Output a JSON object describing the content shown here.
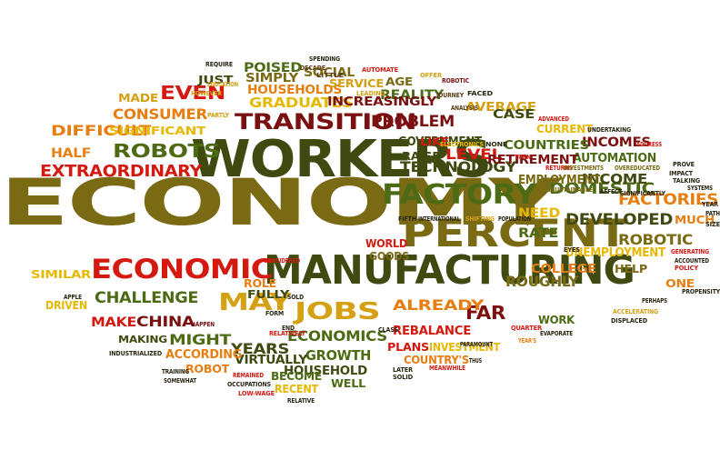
{
  "palette": {
    "olive": "#7a6a14",
    "dark-olive": "#3f4a10",
    "green": "#4d6b14",
    "lime": "#8fa01a",
    "gold": "#d4a014",
    "amber": "#e6b800",
    "orange": "#e67e12",
    "red": "#d41a10",
    "maroon": "#7a1010",
    "brown": "#5a3a10",
    "dark": "#2a2510"
  },
  "words": [
    {
      "text": "ECONOMY",
      "color": "olive"
    },
    {
      "text": "MANUFACTURING",
      "color": "dark-olive"
    },
    {
      "text": "WORKERS",
      "color": "dark-olive"
    },
    {
      "text": "PERCENT",
      "color": "olive"
    },
    {
      "text": "ECONOMIC",
      "color": "red"
    },
    {
      "text": "FACTORY",
      "color": "green"
    },
    {
      "text": "TRANSITION",
      "color": "maroon"
    },
    {
      "text": "JOBS",
      "color": "gold"
    },
    {
      "text": "MAY",
      "color": "gold"
    },
    {
      "text": "ROBOTS",
      "color": "green"
    },
    {
      "text": "EXTRAORDINARY",
      "color": "red"
    },
    {
      "text": "DIFFICULT",
      "color": "orange"
    },
    {
      "text": "EVEN",
      "color": "red"
    },
    {
      "text": "CONSUMER",
      "color": "orange"
    },
    {
      "text": "GRADUATES",
      "color": "amber"
    },
    {
      "text": "DOMESTIC",
      "color": "green"
    },
    {
      "text": "DEVELOPED",
      "color": "dark-olive"
    },
    {
      "text": "FACTORIES",
      "color": "orange"
    },
    {
      "text": "TECHNOLOGY",
      "color": "dark-olive"
    },
    {
      "text": "PROBLEM",
      "color": "maroon"
    },
    {
      "text": "CHALLENGE",
      "color": "green"
    },
    {
      "text": "ECONOMICS",
      "color": "green"
    },
    {
      "text": "ROUGHLY",
      "color": "olive"
    },
    {
      "text": "FAR",
      "color": "maroon"
    },
    {
      "text": "ALREADY",
      "color": "orange"
    },
    {
      "text": "INCOME",
      "color": "dark-olive"
    },
    {
      "text": "ROBOTIC",
      "color": "olive"
    },
    {
      "text": "CHINA",
      "color": "maroon"
    },
    {
      "text": "MAKE",
      "color": "red"
    },
    {
      "text": "YEARS",
      "color": "dark-olive"
    },
    {
      "text": "GROWTH",
      "color": "green"
    },
    {
      "text": "MIGHT",
      "color": "green"
    },
    {
      "text": "HALF",
      "color": "orange"
    },
    {
      "text": "LEVEL",
      "color": "red"
    },
    {
      "text": "NEED",
      "color": "amber"
    },
    {
      "text": "RATE",
      "color": "green"
    },
    {
      "text": "INCOMES",
      "color": "maroon"
    },
    {
      "text": "AUTOMATION",
      "color": "green"
    },
    {
      "text": "EMPLOYMENT",
      "color": "olive"
    },
    {
      "text": "RETIREMENT",
      "color": "maroon"
    },
    {
      "text": "COUNTRIES",
      "color": "green"
    },
    {
      "text": "GOVERNMENT",
      "color": "dark-olive"
    },
    {
      "text": "AVERAGE",
      "color": "gold"
    },
    {
      "text": "CASE",
      "color": "dark-olive"
    },
    {
      "text": "REALITY",
      "color": "green"
    },
    {
      "text": "INCREASINGLY",
      "color": "maroon"
    },
    {
      "text": "SIGNIFICANT",
      "color": "amber"
    },
    {
      "text": "HOUSEHOLDS",
      "color": "orange"
    },
    {
      "text": "POISED",
      "color": "green"
    },
    {
      "text": "SIMPLY",
      "color": "olive"
    },
    {
      "text": "SOCIAL",
      "color": "olive"
    },
    {
      "text": "SERVICE",
      "color": "gold"
    },
    {
      "text": "AGE",
      "color": "olive"
    },
    {
      "text": "MADE",
      "color": "gold"
    },
    {
      "text": "JUST",
      "color": "dark-olive"
    },
    {
      "text": "RAISE",
      "color": "dark-olive"
    },
    {
      "text": "LIKE",
      "color": "red"
    },
    {
      "text": "CURRENT",
      "color": "amber"
    },
    {
      "text": "UNEMPLOYMENT",
      "color": "amber"
    },
    {
      "text": "COLLEGE",
      "color": "orange"
    },
    {
      "text": "HELP",
      "color": "olive"
    },
    {
      "text": "MUCH",
      "color": "orange"
    },
    {
      "text": "ONE",
      "color": "orange"
    },
    {
      "text": "HOUSEHOLD",
      "color": "dark-olive"
    },
    {
      "text": "WELL",
      "color": "green"
    },
    {
      "text": "BECOME",
      "color": "green"
    },
    {
      "text": "RECENT",
      "color": "amber"
    },
    {
      "text": "VIRTUALLY",
      "color": "dark-olive"
    },
    {
      "text": "ACCORDING",
      "color": "orange"
    },
    {
      "text": "ROBOT",
      "color": "orange"
    },
    {
      "text": "REBALANCE",
      "color": "red"
    },
    {
      "text": "PLANS",
      "color": "red"
    },
    {
      "text": "INVESTMENT",
      "color": "amber"
    },
    {
      "text": "COUNTRY'S",
      "color": "orange"
    },
    {
      "text": "WORK",
      "color": "green"
    },
    {
      "text": "FULLY",
      "color": "dark-olive"
    },
    {
      "text": "ROLE",
      "color": "orange"
    },
    {
      "text": "WORLD",
      "color": "red"
    },
    {
      "text": "GOODS",
      "color": "olive"
    },
    {
      "text": "SIMILAR",
      "color": "amber"
    },
    {
      "text": "DRIVEN",
      "color": "amber"
    },
    {
      "text": "MAKING",
      "color": "dark-olive"
    },
    {
      "text": "SPENDING",
      "color": "dark"
    },
    {
      "text": "DECADE",
      "color": "brown"
    },
    {
      "text": "LITTLE",
      "color": "brown"
    },
    {
      "text": "AUTOMATE",
      "color": "red"
    },
    {
      "text": "ROBOTIC",
      "color": "maroon"
    },
    {
      "text": "OFFER",
      "color": "gold"
    },
    {
      "text": "FACED",
      "color": "dark"
    },
    {
      "text": "JOURNEY",
      "color": "brown"
    },
    {
      "text": "ANALYSIS",
      "color": "brown"
    },
    {
      "text": "LEADING",
      "color": "gold"
    },
    {
      "text": "REQUIRE",
      "color": "dark"
    },
    {
      "text": "EDUCATION",
      "color": "gold"
    },
    {
      "text": "HOWEVER",
      "color": "gold"
    },
    {
      "text": "PARTLY",
      "color": "gold"
    },
    {
      "text": "ADVANCED",
      "color": "red"
    },
    {
      "text": "UNDERTAKING",
      "color": "dark"
    },
    {
      "text": "ELECTRONICS",
      "color": "amber"
    },
    {
      "text": "NONE",
      "color": "dark"
    },
    {
      "text": "TURN",
      "color": "red"
    },
    {
      "text": "RETURNS",
      "color": "red"
    },
    {
      "text": "INVESTMENTS",
      "color": "olive"
    },
    {
      "text": "ADDRESS",
      "color": "red"
    },
    {
      "text": "PROVE",
      "color": "dark"
    },
    {
      "text": "IMPACT",
      "color": "dark"
    },
    {
      "text": "OVEREDUCATED",
      "color": "olive"
    },
    {
      "text": "TALKING",
      "color": "dark"
    },
    {
      "text": "SYSTEMS",
      "color": "dark"
    },
    {
      "text": "AFFECT",
      "color": "dark"
    },
    {
      "text": "SIGNIFICANTLY",
      "color": "dark"
    },
    {
      "text": "UNSUSTAINABLE",
      "color": "olive"
    },
    {
      "text": "YEAR",
      "color": "dark"
    },
    {
      "text": "PATH",
      "color": "dark"
    },
    {
      "text": "SIZE",
      "color": "dark"
    },
    {
      "text": "FIFTH",
      "color": "dark"
    },
    {
      "text": "INTERNATIONAL",
      "color": "dark"
    },
    {
      "text": "SHIFTING",
      "color": "gold"
    },
    {
      "text": "POPULATION",
      "color": "dark"
    },
    {
      "text": "EYES",
      "color": "dark"
    },
    {
      "text": "GENERATING",
      "color": "red"
    },
    {
      "text": "ACCOUNTED",
      "color": "dark"
    },
    {
      "text": "POLICY",
      "color": "red"
    },
    {
      "text": "PROPENSITY",
      "color": "dark"
    },
    {
      "text": "PERHAPS",
      "color": "dark"
    },
    {
      "text": "ACCELERATING",
      "color": "gold"
    },
    {
      "text": "DISPLACED",
      "color": "dark"
    },
    {
      "text": "QUARTER",
      "color": "red"
    },
    {
      "text": "EVAPORATE",
      "color": "dark"
    },
    {
      "text": "YEAR'S",
      "color": "orange"
    },
    {
      "text": "CLASS",
      "color": "dark"
    },
    {
      "text": "PARAMOUNT",
      "color": "dark"
    },
    {
      "text": "THUS",
      "color": "dark"
    },
    {
      "text": "LATER",
      "color": "dark"
    },
    {
      "text": "SOLID",
      "color": "dark"
    },
    {
      "text": "MEANWHILE",
      "color": "red"
    },
    {
      "text": "CONSIDERED",
      "color": "red"
    },
    {
      "text": "RELATIVELY",
      "color": "red"
    },
    {
      "text": "SOLD",
      "color": "dark"
    },
    {
      "text": "FORM",
      "color": "dark"
    },
    {
      "text": "END",
      "color": "dark"
    },
    {
      "text": "HAPPEN",
      "color": "maroon"
    },
    {
      "text": "APPLE",
      "color": "dark"
    },
    {
      "text": "INDUSTRIALIZED",
      "color": "dark"
    },
    {
      "text": "TRAINING",
      "color": "dark"
    },
    {
      "text": "SOMEWHAT",
      "color": "dark"
    },
    {
      "text": "REMAINED",
      "color": "red"
    },
    {
      "text": "OCCUPATIONS",
      "color": "dark"
    },
    {
      "text": "LOW-WAGE",
      "color": "red"
    },
    {
      "text": "RELATIVE",
      "color": "dark"
    }
  ]
}
